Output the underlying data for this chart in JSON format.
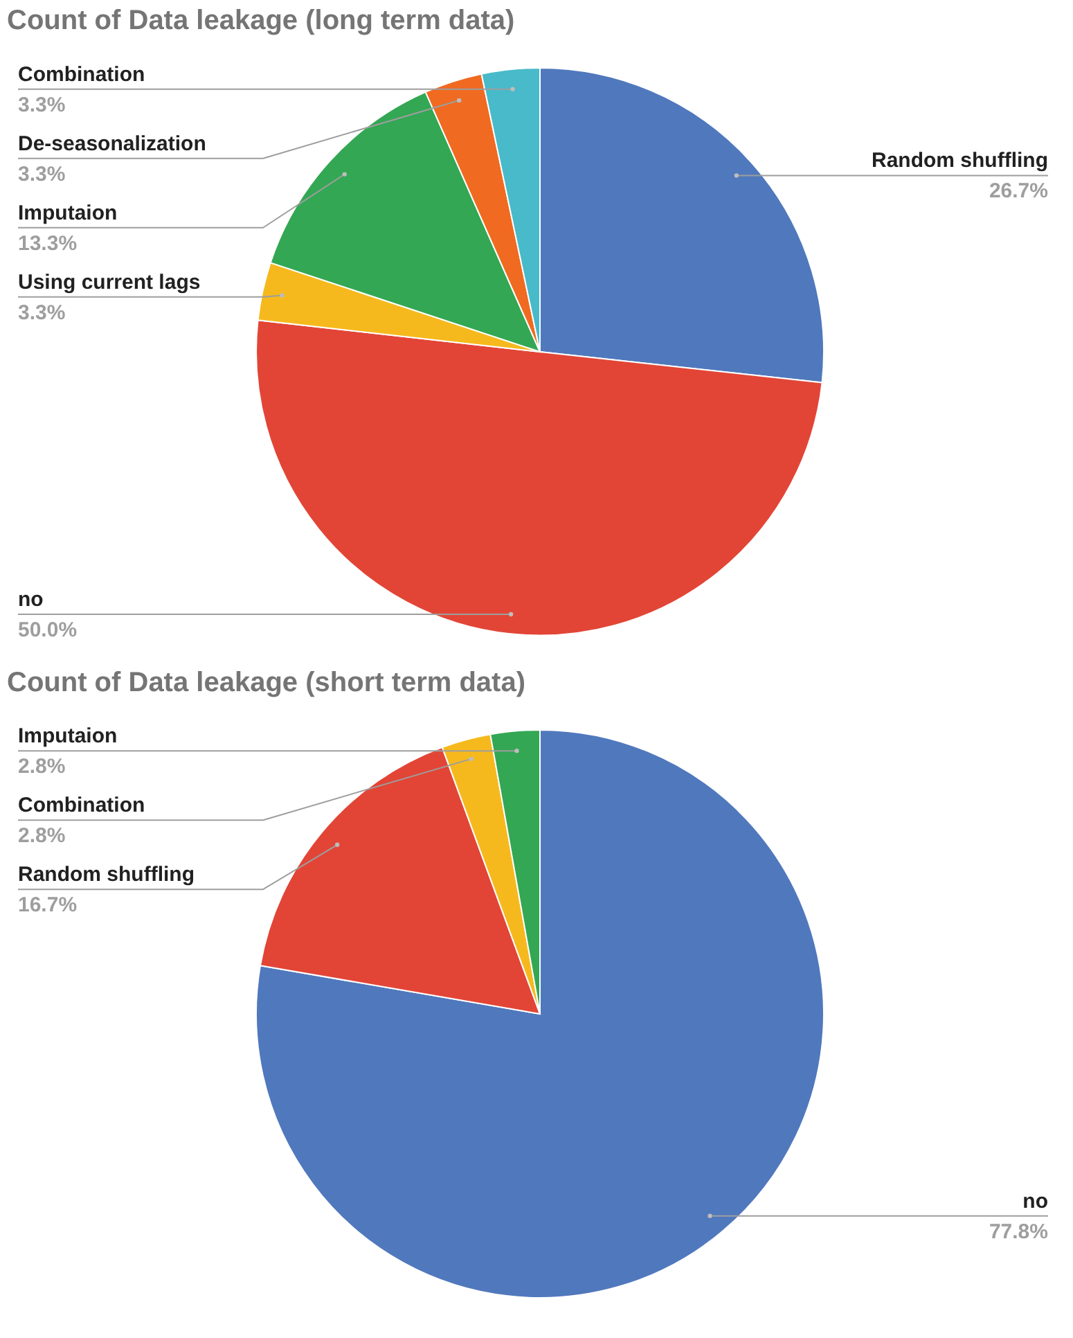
{
  "chart_data": [
    {
      "type": "pie",
      "title": "Count of Data leakage (long term data)",
      "categories": [
        "Random shuffling",
        "no",
        "Using current lags",
        "Imputaion",
        "De-seasonalization",
        "Combination"
      ],
      "values": [
        26.7,
        50.0,
        3.3,
        13.3,
        3.3,
        3.3
      ],
      "value_labels": [
        "26.7%",
        "50.0%",
        "3.3%",
        "13.3%",
        "3.3%",
        "3.3%"
      ],
      "colors": [
        "#5078bd",
        "#e24536",
        "#f6b91d",
        "#33a753",
        "#f06a21",
        "#48bac9"
      ]
    },
    {
      "type": "pie",
      "title": "Count of Data leakage (short term data)",
      "categories": [
        "no",
        "Random shuffling",
        "Combination",
        "Imputaion"
      ],
      "values": [
        77.8,
        16.7,
        2.8,
        2.8
      ],
      "value_labels": [
        "77.8%",
        "16.7%",
        "2.8%",
        "2.8%"
      ],
      "colors": [
        "#5078bd",
        "#e24536",
        "#f6b91d",
        "#33a753"
      ]
    }
  ]
}
